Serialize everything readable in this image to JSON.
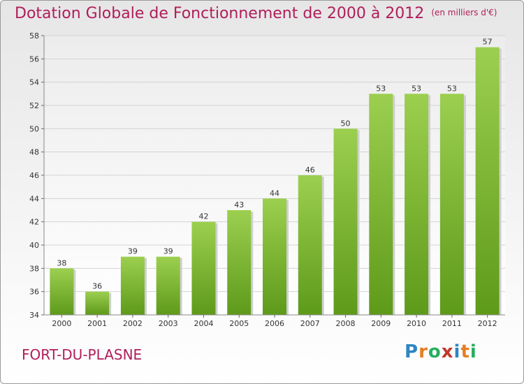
{
  "title": "Dotation Globale de Fonctionnement de 2000 à 2012",
  "subtitle": "(en milliers d'€)",
  "commune": "FORT-DU-PLASNE",
  "logo": {
    "text": "Proxiti",
    "letters": [
      {
        "ch": "P",
        "color": "#2e86c1"
      },
      {
        "ch": "r",
        "color": "#e67e22"
      },
      {
        "ch": "o",
        "color": "#27ae60"
      },
      {
        "ch": "x",
        "color": "#c0392b"
      },
      {
        "ch": "i",
        "color": "#2e86c1"
      },
      {
        "ch": "t",
        "color": "#e67e22"
      },
      {
        "ch": "i",
        "color": "#27ae60"
      }
    ]
  },
  "chart_data": {
    "type": "bar",
    "title": "Dotation Globale de Fonctionnement de 2000 à 2012",
    "subtitle": "(en milliers d'€)",
    "categories": [
      "2000",
      "2001",
      "2002",
      "2003",
      "2004",
      "2005",
      "2006",
      "2007",
      "2008",
      "2009",
      "2010",
      "2011",
      "2012"
    ],
    "values": [
      38,
      36,
      39,
      39,
      42,
      43,
      44,
      46,
      50,
      53,
      53,
      53,
      57
    ],
    "ylim": [
      34,
      58
    ],
    "yticks": [
      34,
      36,
      38,
      40,
      42,
      44,
      46,
      48,
      50,
      52,
      54,
      56,
      58
    ],
    "grid": true,
    "bar_color_top": "#9ccf4f",
    "bar_color_bottom": "#5e9a1a",
    "legend": "none"
  }
}
